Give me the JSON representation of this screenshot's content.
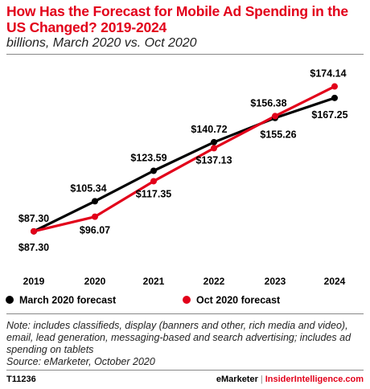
{
  "header": {
    "title": "How Has the Forecast for Mobile Ad Spending in the US Changed? 2019-2024",
    "subtitle": "billions, March 2020 vs. Oct 2020"
  },
  "footer": {
    "note": "Note: includes classifieds, display (banners and other, rich media and video), email, lead generation, messaging-based and search advertising; includes ad spending on tablets",
    "source": "Source: eMarketer, October 2020",
    "code": "T11236",
    "brand_left": "eMarketer",
    "brand_sep": "|",
    "brand_right": "InsiderIntelligence.com"
  },
  "colors": {
    "title": "#e2001a",
    "march_series": "#000000",
    "oct_series": "#e2001a"
  },
  "chart_data": {
    "type": "line",
    "x": [
      "2019",
      "2020",
      "2021",
      "2022",
      "2023",
      "2024"
    ],
    "series": [
      {
        "name": "March 2020 forecast",
        "values": [
          87.3,
          105.34,
          123.59,
          140.72,
          155.26,
          167.25
        ],
        "labels": [
          "$87.30",
          "$105.34",
          "$123.59",
          "$140.72",
          "$155.26",
          "$167.25"
        ],
        "color": "#000000"
      },
      {
        "name": "Oct 2020 forecast",
        "values": [
          87.3,
          96.07,
          117.35,
          137.13,
          156.38,
          174.14
        ],
        "labels": [
          "$87.30",
          "$96.07",
          "$117.35",
          "$137.13",
          "$156.38",
          "$174.14"
        ],
        "color": "#e2001a"
      }
    ],
    "ylim": [
      80,
      185
    ],
    "grid": false,
    "legend_position": "bottom-left"
  }
}
